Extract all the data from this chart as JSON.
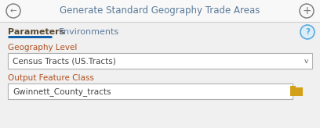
{
  "title": "Generate Standard Geography Trade Areas",
  "bg_color": "#f0f0f0",
  "header_bg": "#f2f2f2",
  "tab1": "Parameters",
  "tab2": "Environments",
  "tab1_color": "#5c4a32",
  "tab2_color": "#5c7a9e",
  "tab1_underline": "#0055a5",
  "label1": "Geography Level",
  "dropdown_text": "Census Tracts (US.Tracts)",
  "label2": "Output Feature Class",
  "textbox_text": "Gwinnett_County_tracts",
  "box_border_color": "#b0b0b0",
  "box_bg": "#ffffff",
  "text_color": "#444444",
  "title_color": "#5a7a9a",
  "back_arrow_color": "#777777",
  "plus_color": "#777777",
  "help_circle_color": "#5aabde",
  "help_text_color": "#5aabde",
  "folder_color": "#d4a017",
  "chevron_color": "#666666",
  "separator_color": "#d0d0d0",
  "label_color": "#b05020"
}
